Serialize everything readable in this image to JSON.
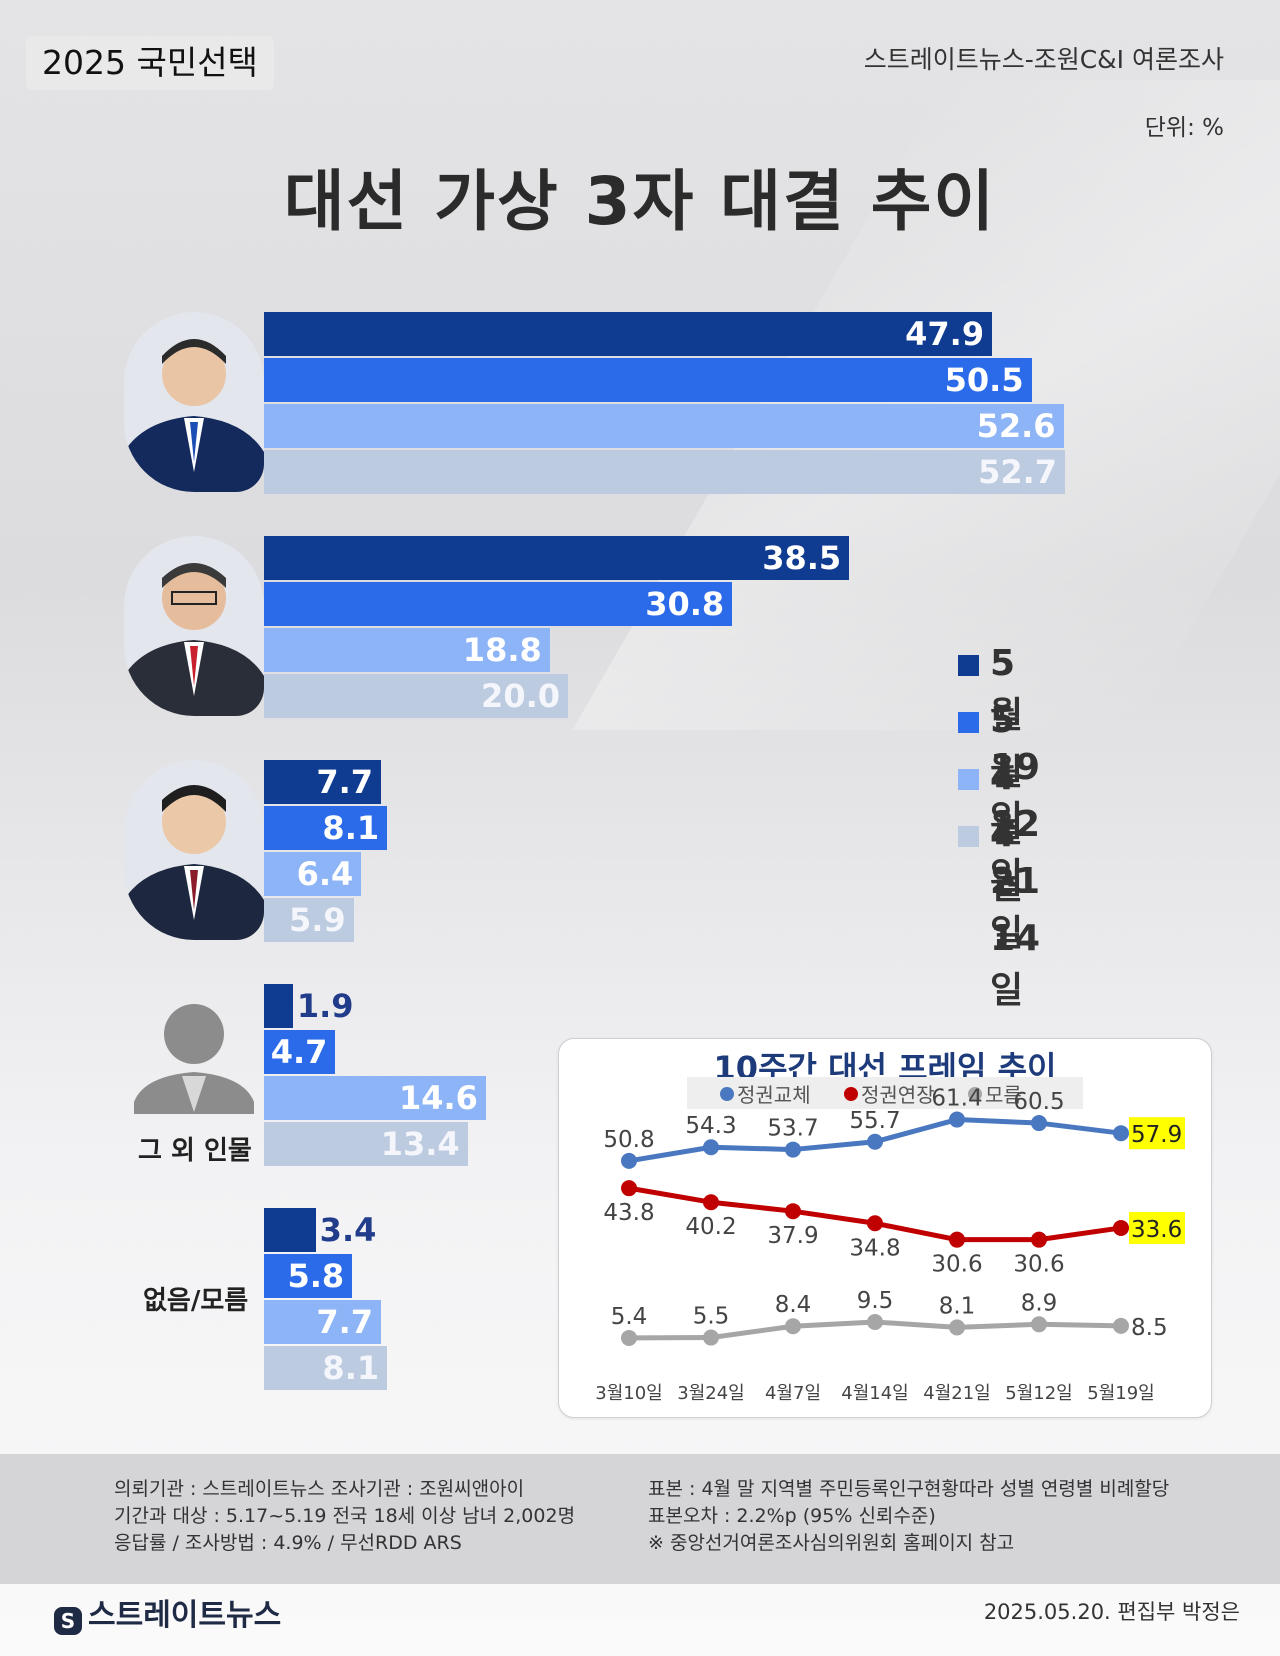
{
  "header": {
    "badge": "2025 국민선택",
    "source": "스트레이트뉴스-조원C&I 여론조사",
    "unit": "단위: %",
    "title": "대선 가상 3자 대결 추이"
  },
  "legend": [
    {
      "label": "5월19일",
      "color": "#0f3b91"
    },
    {
      "label": "5월12일",
      "color": "#2b6bea"
    },
    {
      "label": "4월21일",
      "color": "#8db4f6"
    },
    {
      "label": "4월14일",
      "color": "#bccbdf"
    }
  ],
  "chart_data": [
    {
      "type": "bar",
      "title": "대선 가상 3자 대결 추이",
      "unit": "%",
      "series_names": [
        "5월19일",
        "5월12일",
        "4월21일",
        "4월14일"
      ],
      "groups": [
        {
          "label": "",
          "avatar": "candidate-1",
          "values": [
            47.9,
            50.5,
            52.6,
            52.7
          ]
        },
        {
          "label": "",
          "avatar": "candidate-2",
          "values": [
            38.5,
            30.8,
            18.8,
            20.0
          ]
        },
        {
          "label": "",
          "avatar": "candidate-3",
          "values": [
            7.7,
            8.1,
            6.4,
            5.9
          ]
        },
        {
          "label": "그 외 인물",
          "avatar": "silhouette",
          "values": [
            1.9,
            4.7,
            14.6,
            13.4
          ]
        },
        {
          "label": "없음/모름",
          "avatar": "",
          "values": [
            3.4,
            5.8,
            7.7,
            8.1
          ]
        }
      ],
      "value_labels": [
        [
          "47.9",
          "50.5",
          "52.6",
          "52.7"
        ],
        [
          "38.5",
          "30.8",
          "18.8",
          "20.0"
        ],
        [
          "7.7",
          "8.1",
          "6.4",
          "5.9"
        ],
        [
          "1.9",
          "4.7",
          "14.6",
          "13.4"
        ],
        [
          "3.4",
          "5.8",
          "7.7",
          "8.1"
        ]
      ]
    },
    {
      "type": "line",
      "title": "10주간 대선 프레임 추이",
      "x": [
        "3월10일",
        "3월24일",
        "4월7일",
        "4월14일",
        "4월21일",
        "5월12일",
        "5월19일"
      ],
      "series": [
        {
          "name": "정권교체",
          "color": "#4a78c0",
          "values": [
            50.8,
            54.3,
            53.7,
            55.7,
            61.4,
            60.5,
            57.9
          ],
          "labels": [
            "50.8",
            "54.3",
            "53.7",
            "55.7",
            "61.4",
            "60.5",
            "57.9"
          ]
        },
        {
          "name": "정권연장",
          "color": "#c00000",
          "values": [
            43.8,
            40.2,
            37.9,
            34.8,
            30.6,
            30.6,
            33.6
          ],
          "labels": [
            "43.8",
            "40.2",
            "37.9",
            "34.8",
            "30.6",
            "30.6",
            "33.6"
          ]
        },
        {
          "name": "모름",
          "color": "#a6a6a6",
          "values": [
            5.4,
            5.5,
            8.4,
            9.5,
            8.1,
            8.9,
            8.5
          ],
          "labels": [
            "5.4",
            "5.5",
            "8.4",
            "9.5",
            "8.1",
            "8.9",
            "8.5"
          ]
        }
      ],
      "highlight_last": true,
      "highlight_color": "#ffff00",
      "ylim": [
        0,
        70
      ]
    }
  ],
  "footer": {
    "left": [
      "의뢰기관 : 스트레이트뉴스  조사기관 : 조원씨앤아이",
      "기간과 대상 : 5.17~5.19   전국 18세 이상 남녀 2,002명",
      "응답률 / 조사방법 : 4.9% / 무선RDD ARS"
    ],
    "right": [
      "표본 : 4월 말 지역별 주민등록인구현황따라 성별 연령별 비례할당",
      "표본오차 : 2.2%p (95% 신뢰수준)",
      "※ 중앙선거여론조사심의위원회 홈페이지 참고"
    ],
    "brand": "스트레이트뉴스",
    "brand_mark": "S",
    "credit": "2025.05.20. 편집부 박정은"
  }
}
